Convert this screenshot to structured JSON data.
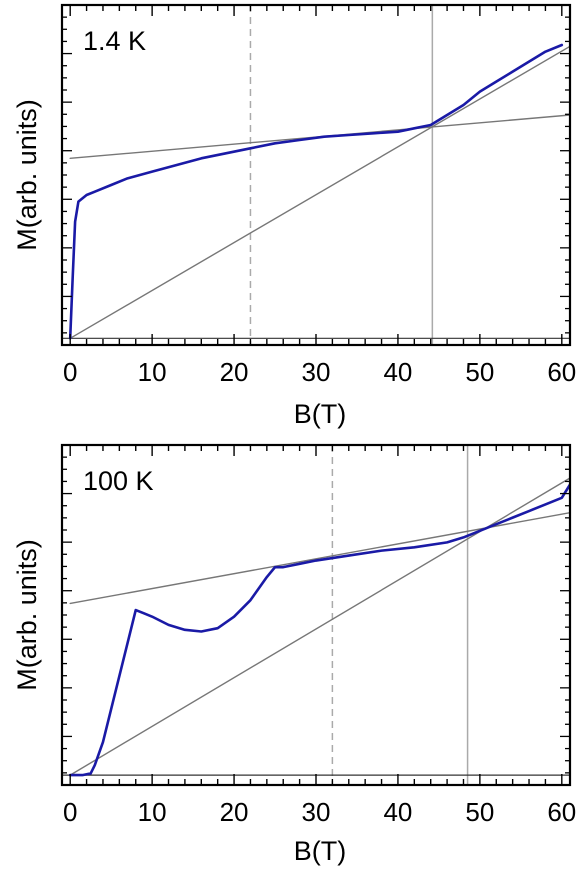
{
  "chart_data": [
    {
      "type": "line",
      "panel_label": "1.4 K",
      "xlabel": "B(T)",
      "ylabel": "M(arb. units)",
      "xlim": [
        -1,
        61
      ],
      "ylim": [
        -0.02,
        1.0
      ],
      "x_ticks": [
        0,
        10,
        20,
        30,
        40,
        50,
        60
      ],
      "y_ticks": [],
      "grid": false,
      "series": [
        {
          "color": "#1a1aa6",
          "x": [
            0,
            0.3,
            0.6,
            1,
            2,
            3,
            5,
            7,
            10,
            13,
            16,
            19,
            22,
            25,
            28,
            31,
            34,
            37,
            40,
            42,
            44,
            46,
            48,
            50,
            52,
            54,
            56,
            58,
            60
          ],
          "y": [
            0.0,
            0.18,
            0.35,
            0.41,
            0.43,
            0.44,
            0.46,
            0.48,
            0.5,
            0.52,
            0.54,
            0.555,
            0.57,
            0.585,
            0.595,
            0.605,
            0.61,
            0.615,
            0.62,
            0.63,
            0.64,
            0.67,
            0.7,
            0.74,
            0.77,
            0.8,
            0.83,
            0.86,
            0.88
          ]
        },
        {
          "color": "#777777",
          "x": [
            0,
            61
          ],
          "y": [
            0.54,
            0.67
          ]
        },
        {
          "color": "#777777",
          "x": [
            0,
            61
          ],
          "y": [
            0.0,
            0.876
          ]
        }
      ],
      "baseline_y": 0.0,
      "vlines": [
        {
          "x": 22,
          "style": "dashed",
          "color": "#aaaaaa"
        },
        {
          "x": 44.2,
          "style": "solid",
          "color": "#aaaaaa"
        }
      ]
    },
    {
      "type": "line",
      "panel_label": "100 K",
      "xlabel": "B(T)",
      "ylabel": "M(arb. units)",
      "xlim": [
        -1,
        61
      ],
      "ylim": [
        -0.03,
        1.0
      ],
      "x_ticks": [
        0,
        10,
        20,
        30,
        40,
        50,
        60
      ],
      "y_ticks": [],
      "grid": false,
      "series": [
        {
          "color": "#1a1aa6",
          "x": [
            0,
            1.5,
            2.5,
            3,
            4,
            5,
            6,
            7,
            8,
            9,
            10,
            12,
            14,
            16,
            18,
            20,
            22,
            24,
            25,
            26,
            28,
            30,
            34,
            38,
            42,
            46,
            48,
            50,
            52,
            54,
            56,
            58,
            60,
            61
          ],
          "y": [
            0.0,
            0.0,
            0.005,
            0.03,
            0.1,
            0.2,
            0.3,
            0.4,
            0.5,
            0.49,
            0.48,
            0.455,
            0.44,
            0.435,
            0.445,
            0.48,
            0.53,
            0.6,
            0.63,
            0.63,
            0.64,
            0.65,
            0.665,
            0.68,
            0.69,
            0.705,
            0.72,
            0.74,
            0.76,
            0.78,
            0.8,
            0.82,
            0.84,
            0.88
          ]
        },
        {
          "color": "#777777",
          "x": [
            0,
            61
          ],
          "y": [
            0.52,
            0.795
          ]
        },
        {
          "color": "#777777",
          "x": [
            0,
            61
          ],
          "y": [
            0.0,
            0.9
          ]
        }
      ],
      "baseline_y": 0.0,
      "vlines": [
        {
          "x": 32,
          "style": "dashed",
          "color": "#aaaaaa"
        },
        {
          "x": 48.5,
          "style": "solid",
          "color": "#aaaaaa"
        }
      ]
    }
  ]
}
